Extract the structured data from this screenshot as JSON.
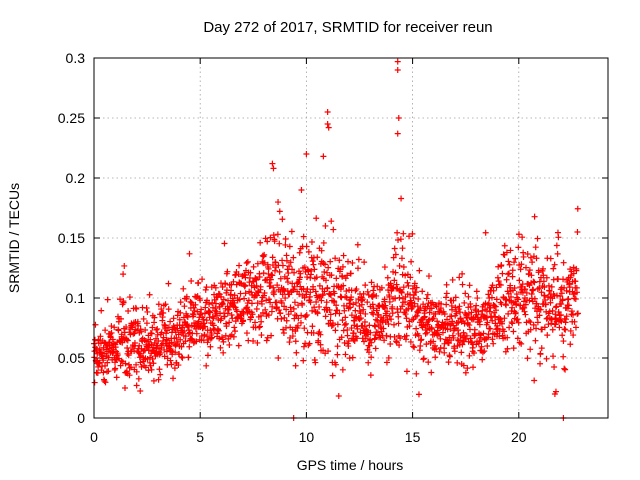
{
  "chart_data": {
    "type": "scatter",
    "title": "Day 272 of 2017, SRMTID for receiver reun",
    "xlabel": "GPS time / hours",
    "ylabel": "SRMTID / TECUs",
    "xlim": [
      0,
      24.2
    ],
    "ylim": [
      0,
      0.3
    ],
    "grid": true,
    "marker": "+",
    "colors": {
      "points": "#ff0000",
      "grid": "#a0a0a0",
      "axes": "#000000"
    },
    "x_ticks": [
      0,
      5,
      10,
      15,
      20
    ],
    "x_tick_labels": [
      "0",
      "5",
      "10",
      "15",
      "20"
    ],
    "y_ticks": [
      0,
      0.05,
      0.1,
      0.15,
      0.2,
      0.25,
      0.3
    ],
    "y_tick_labels": [
      "0",
      "0.05",
      "0.1",
      "0.15",
      "0.2",
      "0.25",
      "0.3"
    ],
    "series": [
      {
        "name": "SRMTID",
        "hour_centers": [
          0.5,
          1.5,
          2.5,
          3.5,
          4.5,
          5.5,
          6.5,
          7.5,
          8.5,
          9.5,
          10.5,
          11.5,
          12.5,
          13.5,
          14.5,
          15.5,
          16.5,
          17.5,
          18.5,
          19.5,
          20.5,
          21.5,
          22.5
        ],
        "hourly_typical_values": [
          0.055,
          0.065,
          0.06,
          0.065,
          0.075,
          0.085,
          0.095,
          0.1,
          0.11,
          0.1,
          0.105,
          0.09,
          0.085,
          0.08,
          0.1,
          0.08,
          0.075,
          0.075,
          0.085,
          0.1,
          0.105,
          0.095,
          0.1
        ],
        "hourly_spread": [
          0.015,
          0.02,
          0.02,
          0.018,
          0.02,
          0.02,
          0.022,
          0.025,
          0.03,
          0.03,
          0.035,
          0.03,
          0.025,
          0.022,
          0.035,
          0.022,
          0.02,
          0.02,
          0.022,
          0.025,
          0.03,
          0.03,
          0.028
        ],
        "notable_points": [
          {
            "x": 14.3,
            "y": 0.297
          },
          {
            "x": 14.3,
            "y": 0.29
          },
          {
            "x": 14.35,
            "y": 0.25
          },
          {
            "x": 14.3,
            "y": 0.237
          },
          {
            "x": 11.0,
            "y": 0.255
          },
          {
            "x": 11.0,
            "y": 0.245
          },
          {
            "x": 11.05,
            "y": 0.242
          },
          {
            "x": 10.0,
            "y": 0.22
          },
          {
            "x": 10.8,
            "y": 0.218
          },
          {
            "x": 8.4,
            "y": 0.212
          },
          {
            "x": 8.45,
            "y": 0.208
          },
          {
            "x": 9.4,
            "y": 0.0
          },
          {
            "x": 22.1,
            "y": 0.0
          },
          {
            "x": 21.7,
            "y": 0.02
          },
          {
            "x": 21.75,
            "y": 0.022
          }
        ]
      }
    ]
  }
}
